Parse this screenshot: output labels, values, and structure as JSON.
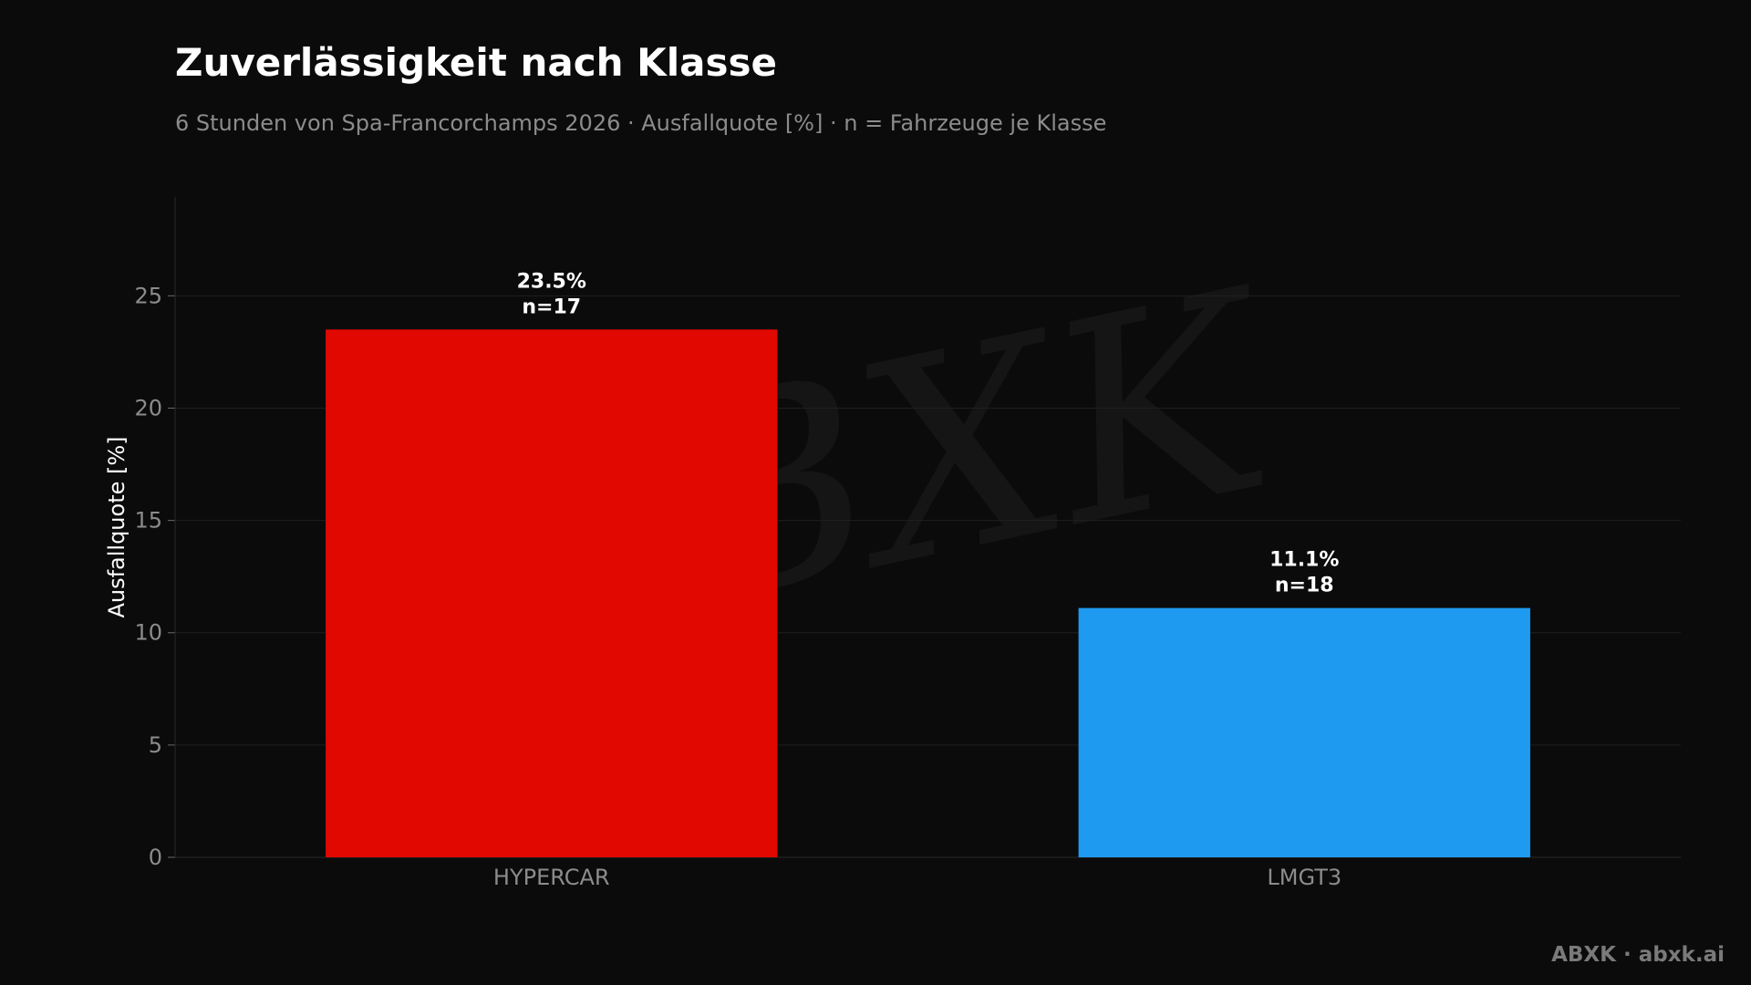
{
  "footer": "ABXK · abxk.ai",
  "watermark": "ABXK",
  "chart_data": {
    "type": "bar",
    "title": "Zuverlässigkeit nach Klasse",
    "subtitle": "6 Stunden von Spa-Francorchamps 2026 · Ausfallquote [%] · n = Fahrzeuge je Klasse",
    "xlabel": "",
    "ylabel": "Ausfallquote [%]",
    "ylim": [
      0,
      29.4
    ],
    "yticks": [
      0,
      5,
      10,
      15,
      20,
      25
    ],
    "grid": true,
    "categories": [
      "HYPERCAR",
      "LMGT3"
    ],
    "values": [
      23.5,
      11.1
    ],
    "data_labels": [
      "23.5%",
      "11.1%"
    ],
    "counts": [
      "n=17",
      "n=18"
    ],
    "colors": [
      "#e00800",
      "#1e9bf0"
    ]
  }
}
